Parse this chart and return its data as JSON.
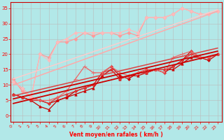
{
  "xlabel": "Vent moyen/en rafales ( km/h )",
  "background_color": "#b2e8e8",
  "grid_color": "#bbbbbb",
  "x_ticks": [
    0,
    1,
    2,
    3,
    4,
    5,
    6,
    7,
    8,
    9,
    10,
    11,
    12,
    13,
    14,
    15,
    16,
    17,
    18,
    19,
    20,
    21,
    22,
    23
  ],
  "y_ticks": [
    0,
    5,
    10,
    15,
    20,
    25,
    30,
    35
  ],
  "ylim": [
    -2,
    37
  ],
  "xlim": [
    -0.3,
    23.5
  ],
  "series": [
    {
      "x": [
        0,
        1,
        2,
        3,
        4,
        5,
        6,
        7,
        8,
        9,
        10,
        11,
        12,
        13,
        14,
        15,
        16,
        17,
        18,
        19,
        20,
        21,
        22,
        23
      ],
      "y": [
        7,
        6,
        5,
        3,
        2,
        5,
        6,
        7,
        8,
        9,
        13,
        15,
        12,
        13,
        13,
        14,
        15,
        15,
        15,
        17,
        19,
        19,
        19,
        20
      ],
      "color": "#cc0000",
      "marker": "^",
      "markersize": 2.5,
      "linewidth": 0.9,
      "linestyle": "-"
    },
    {
      "x": [
        0,
        1,
        2,
        3,
        4,
        5,
        6,
        7,
        8,
        9,
        10,
        11,
        12,
        13,
        14,
        15,
        16,
        17,
        18,
        19,
        20,
        21,
        22,
        23
      ],
      "y": [
        7,
        6,
        5,
        5,
        4,
        5,
        6,
        8,
        9,
        10,
        14,
        16,
        13,
        12,
        14,
        15,
        15,
        14,
        16,
        18,
        21,
        19,
        18,
        20
      ],
      "color": "#cc0000",
      "marker": "D",
      "markersize": 2.0,
      "linewidth": 0.9,
      "linestyle": "-"
    },
    {
      "x": [
        0,
        1,
        2,
        3,
        4,
        5,
        6,
        7,
        8,
        9,
        10,
        11,
        12,
        13,
        14,
        15,
        16,
        17,
        18,
        19,
        20,
        21,
        22,
        23
      ],
      "y": [
        7,
        6,
        5,
        5,
        4,
        6,
        7,
        8,
        9,
        10,
        14,
        15,
        12,
        13,
        14,
        14,
        15,
        15,
        16,
        18,
        20,
        19,
        19,
        20
      ],
      "color": "#dd3333",
      "marker": "D",
      "markersize": 2.0,
      "linewidth": 0.9,
      "linestyle": "-"
    },
    {
      "x": [
        0,
        1,
        2,
        3,
        4,
        5,
        6,
        7,
        8,
        9,
        10,
        11,
        12,
        13,
        14,
        15,
        16,
        17,
        18,
        19,
        20,
        21,
        22,
        23
      ],
      "y": [
        11,
        9,
        6,
        5,
        5,
        6,
        8,
        12,
        16,
        14,
        14,
        16,
        14,
        13,
        14,
        15,
        15,
        14,
        19,
        20,
        21,
        19,
        19,
        20
      ],
      "color": "#ee6666",
      "marker": "+",
      "markersize": 4,
      "linewidth": 0.9,
      "linestyle": "-"
    },
    {
      "x": [
        0,
        1,
        2,
        3,
        4,
        5,
        6,
        7,
        8,
        9,
        10,
        11,
        12,
        13,
        14,
        15,
        16,
        17,
        18,
        19,
        20,
        21,
        22,
        23
      ],
      "y": [
        12,
        8,
        6,
        20,
        19,
        24,
        24,
        25,
        27,
        26,
        27,
        27,
        26,
        27,
        26,
        32,
        32,
        32,
        33,
        35,
        34,
        33,
        33,
        34
      ],
      "color": "#ff9999",
      "marker": "D",
      "markersize": 2.5,
      "linewidth": 0.9,
      "linestyle": "-"
    },
    {
      "x": [
        0,
        1,
        2,
        3,
        4,
        5,
        6,
        7,
        8,
        9,
        10,
        11,
        12,
        13,
        14,
        15,
        16,
        17,
        18,
        19,
        20,
        21,
        22,
        23
      ],
      "y": [
        11,
        9,
        6,
        20,
        18,
        24,
        25,
        27,
        27,
        27,
        27,
        27,
        27,
        28,
        27,
        32,
        32,
        32,
        33,
        35,
        34,
        33,
        33,
        34
      ],
      "color": "#ffbbbb",
      "marker": "D",
      "markersize": 2.5,
      "linewidth": 0.9,
      "linestyle": "-"
    },
    {
      "x": [
        0,
        23
      ],
      "y": [
        4.0,
        20.0
      ],
      "color": "#cc0000",
      "marker": null,
      "linewidth": 1.3,
      "linestyle": "-"
    },
    {
      "x": [
        0,
        23
      ],
      "y": [
        5.5,
        21.0
      ],
      "color": "#cc0000",
      "marker": null,
      "linewidth": 1.3,
      "linestyle": "-"
    },
    {
      "x": [
        0,
        23
      ],
      "y": [
        6.5,
        22.0
      ],
      "color": "#dd4444",
      "marker": null,
      "linewidth": 1.1,
      "linestyle": "-"
    },
    {
      "x": [
        0,
        23
      ],
      "y": [
        10.0,
        34.0
      ],
      "color": "#ffaaaa",
      "marker": null,
      "linewidth": 1.1,
      "linestyle": "-"
    },
    {
      "x": [
        0,
        23
      ],
      "y": [
        12.0,
        34.5
      ],
      "color": "#ffcccc",
      "marker": null,
      "linewidth": 1.0,
      "linestyle": "-"
    }
  ]
}
